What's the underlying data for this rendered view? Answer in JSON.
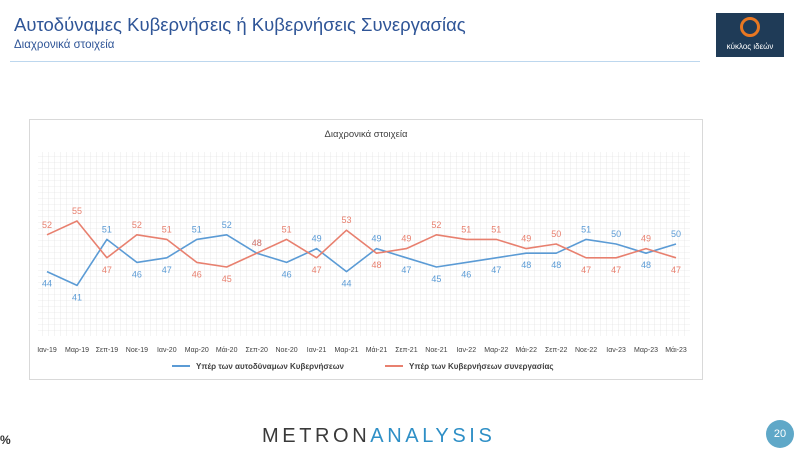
{
  "header": {
    "title": "Αυτοδύναμες Κυβερνήσεις ή Κυβερνήσεις Συνεργασίας",
    "subtitle": "Διαχρονικά στοιχεία"
  },
  "logo": {
    "text": "κύκλος ιδεών"
  },
  "footer": {
    "brand_part1": "METRON",
    "brand_part2": "ANALYSIS",
    "page_number": "20",
    "percent_label": "%"
  },
  "colors": {
    "series_blue": "#5b9bd5",
    "series_red": "#e8806f"
  },
  "chart_data": {
    "type": "line",
    "title": "Διαχρονικά στοιχεία",
    "xlabel": "",
    "ylabel": "",
    "ylim": [
      30,
      70
    ],
    "grid": true,
    "legend": "bottom",
    "categories": [
      "Ιαν-19",
      "Μαρ-19",
      "Σεπ-19",
      "Νοε-19",
      "Ιαν-20",
      "Μαρ-20",
      "Μάι-20",
      "Σεπ-20",
      "Νοε-20",
      "Ιαν-21",
      "Μαρ-21",
      "Μάι-21",
      "Σεπ-21",
      "Νοε-21",
      "Ιαν-22",
      "Μαρ-22",
      "Μάι-22",
      "Σεπ-22",
      "Νοε-22",
      "Ιαν-23",
      "Μαρ-23",
      "Μάι-23"
    ],
    "series": [
      {
        "name": "Υπέρ των αυτοδύναμων Κυβερνήσεων",
        "color": "#5b9bd5",
        "values": [
          44,
          41,
          51,
          46,
          47,
          51,
          52,
          48,
          46,
          49,
          44,
          49,
          47,
          45,
          46,
          47,
          48,
          48,
          51,
          50,
          48,
          50
        ]
      },
      {
        "name": "Υπέρ των Κυβερνήσεων συνεργασίας",
        "color": "#e8806f",
        "values": [
          52,
          55,
          47,
          52,
          51,
          46,
          45,
          48,
          51,
          47,
          53,
          48,
          49,
          52,
          51,
          51,
          49,
          50,
          47,
          47,
          49,
          47
        ]
      }
    ]
  }
}
